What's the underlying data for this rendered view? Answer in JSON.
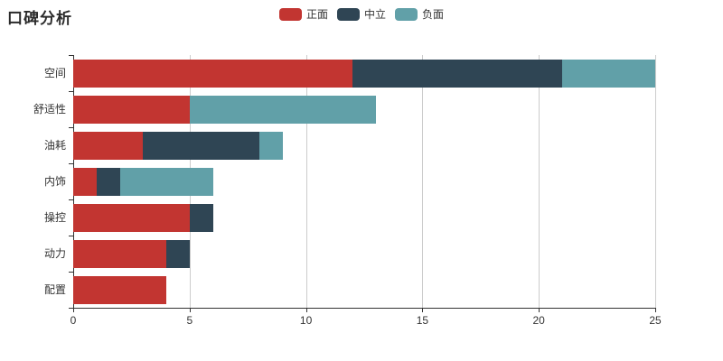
{
  "title": "口碑分析",
  "legend": {
    "items": [
      {
        "label": "正面",
        "color": "#c23531"
      },
      {
        "label": "中立",
        "color": "#2f4554"
      },
      {
        "label": "负面",
        "color": "#61a0a8"
      }
    ],
    "position": "top-center"
  },
  "chart_data": {
    "type": "bar",
    "orientation": "horizontal",
    "stacked": true,
    "title": "口碑分析",
    "categories": [
      "空间",
      "舒适性",
      "油耗",
      "内饰",
      "操控",
      "动力",
      "配置"
    ],
    "series": [
      {
        "name": "正面",
        "color": "#c23531",
        "values": [
          12,
          5,
          3,
          1,
          5,
          4,
          4
        ]
      },
      {
        "name": "中立",
        "color": "#2f4554",
        "values": [
          9,
          0,
          5,
          1,
          1,
          1,
          0
        ]
      },
      {
        "name": "负面",
        "color": "#61a0a8",
        "values": [
          4,
          8,
          1,
          4,
          0,
          0,
          0
        ]
      }
    ],
    "xlabel": "",
    "ylabel": "",
    "xlim": [
      0,
      25
    ],
    "x_ticks": [
      0,
      5,
      10,
      15,
      20,
      25
    ],
    "x_tick_labels": [
      "0",
      "5",
      "10",
      "15",
      "20",
      "25"
    ],
    "grid": true,
    "legend_position": "top-center"
  },
  "colors": {
    "background": "#ffffff",
    "axis": "#333333",
    "gridline": "#cccccc",
    "text": "#333333",
    "title_text": "#2b2b2b"
  }
}
